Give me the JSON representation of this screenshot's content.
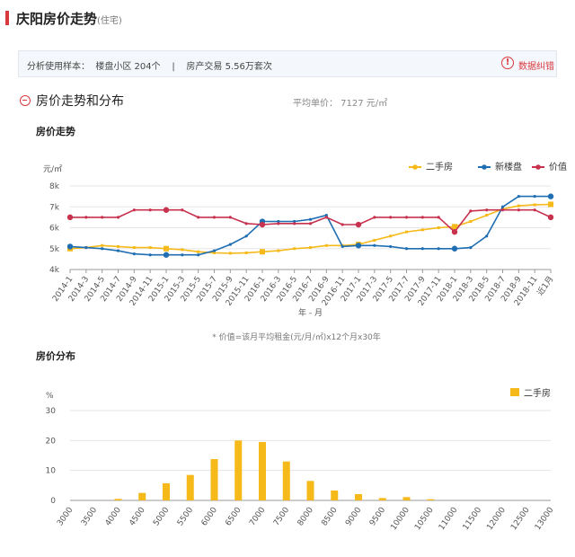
{
  "header": {
    "title": "庆阳房价走势",
    "subtitle": "(住宅)"
  },
  "info_bar": {
    "text": "分析使用样本：  楼盘小区 204个    |    房产交易 5.56万套次",
    "error_icon": "!",
    "error_link": "数据纠错"
  },
  "section": {
    "title": "房价走势和分布",
    "avg_price": "平均单价： 7127 元/㎡"
  },
  "chart_data": [
    {
      "type": "line",
      "title": "房价走势",
      "ylabel": "元/㎡",
      "xlabel": "年 - 月",
      "ylim": [
        4000,
        8000
      ],
      "ytick_labels": [
        "4k",
        "5k",
        "6k",
        "7k",
        "8k"
      ],
      "yticks": [
        4000,
        5000,
        6000,
        7000,
        8000
      ],
      "x": [
        "2014-1",
        "2014-3",
        "2014-5",
        "2014-7",
        "2014-9",
        "2014-11",
        "2015-1",
        "2015-3",
        "2015-5",
        "2015-7",
        "2015-9",
        "2015-11",
        "2016-1",
        "2016-3",
        "2016-5",
        "2016-7",
        "2016-9",
        "2016-11",
        "2017-1",
        "2017-3",
        "2017-5",
        "2017-7",
        "2017-9",
        "2017-11",
        "2018-1",
        "2018-3",
        "2018-5",
        "2018-7",
        "2018-9",
        "2018-11",
        "近1月"
      ],
      "legend_position": "top-right",
      "series": [
        {
          "name": "二手房",
          "color": "#f5b919",
          "values": [
            5000,
            5050,
            5150,
            5100,
            5050,
            5050,
            5000,
            4950,
            4850,
            4800,
            4780,
            4800,
            4850,
            4900,
            5000,
            5050,
            5150,
            5150,
            5200,
            5400,
            5600,
            5800,
            5900,
            6000,
            6050,
            6300,
            6600,
            6900,
            7050,
            7100,
            7120
          ]
        },
        {
          "name": "新楼盘",
          "color": "#1f6eb3",
          "values": [
            5100,
            5050,
            5000,
            4900,
            4750,
            4700,
            4700,
            4700,
            4700,
            4900,
            5200,
            5600,
            6300,
            6300,
            6300,
            6400,
            6600,
            5100,
            5150,
            5150,
            5100,
            5000,
            5000,
            5000,
            5000,
            5050,
            5600,
            7000,
            7500,
            7500,
            7500
          ]
        },
        {
          "name": "价值",
          "color": "#c8324e",
          "values": [
            6500,
            6500,
            6500,
            6500,
            6850,
            6850,
            6850,
            6850,
            6500,
            6500,
            6500,
            6200,
            6150,
            6200,
            6200,
            6200,
            6500,
            6150,
            6150,
            6500,
            6500,
            6500,
            6500,
            6500,
            5800,
            6800,
            6850,
            6850,
            6850,
            6850,
            6500
          ]
        }
      ],
      "footnote": "* 价值=该月平均租金(元/月/㎡)x12个月x30年"
    },
    {
      "type": "bar",
      "title": "房价分布",
      "ylabel": "%",
      "ylim": [
        0,
        30
      ],
      "yticks": [
        0,
        10,
        20,
        30
      ],
      "categories": [
        "3000",
        "3500",
        "4000",
        "4500",
        "5000",
        "5500",
        "6000",
        "6500",
        "7000",
        "7500",
        "8000",
        "8500",
        "9000",
        "9500",
        "10000",
        "10500",
        "11000",
        "11500",
        "12000",
        "12500",
        "13000"
      ],
      "series": [
        {
          "name": "二手房",
          "color": "#f5b919",
          "values": [
            0,
            0,
            0.5,
            2.5,
            5.7,
            8.5,
            13.8,
            20,
            19.5,
            13,
            6.5,
            3.3,
            2.1,
            0.8,
            1.1,
            0.4,
            0,
            0,
            0,
            0,
            0
          ]
        }
      ],
      "legend_position": "top-right"
    }
  ]
}
